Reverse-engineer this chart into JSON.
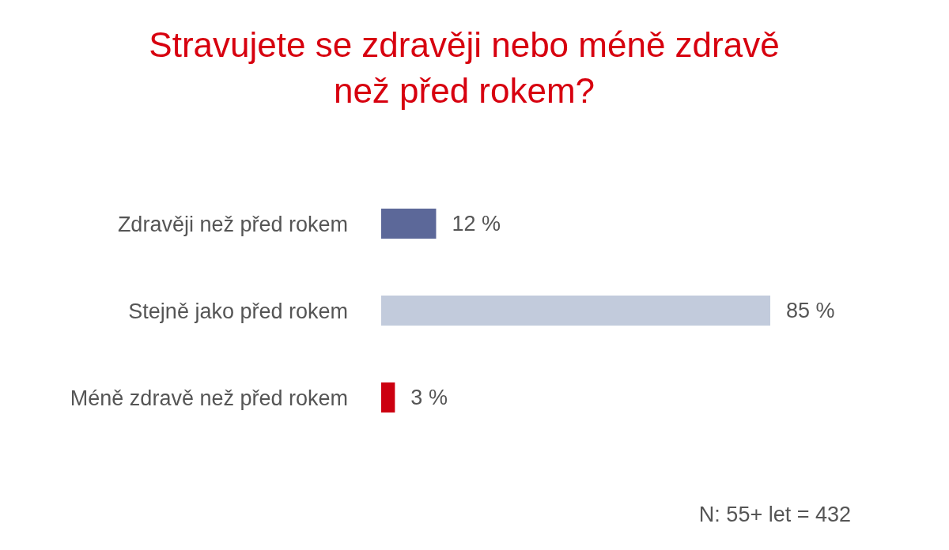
{
  "chart_data": {
    "type": "bar",
    "orientation": "horizontal",
    "title": "Stravujete se zdravěji nebo méně zdravě než před rokem?",
    "categories": [
      "Zdravěji než před rokem",
      "Stejně jako před rokem",
      "Méně zdravě než před rokem"
    ],
    "values": [
      12,
      85,
      3
    ],
    "colors": [
      "#5c6899",
      "#c2cbdc",
      "#cc0010"
    ],
    "value_labels": [
      "12 %",
      "85 %",
      "3 %"
    ],
    "grid": false,
    "legend": false,
    "annotations": [
      "N: 55+ let = 432"
    ]
  }
}
